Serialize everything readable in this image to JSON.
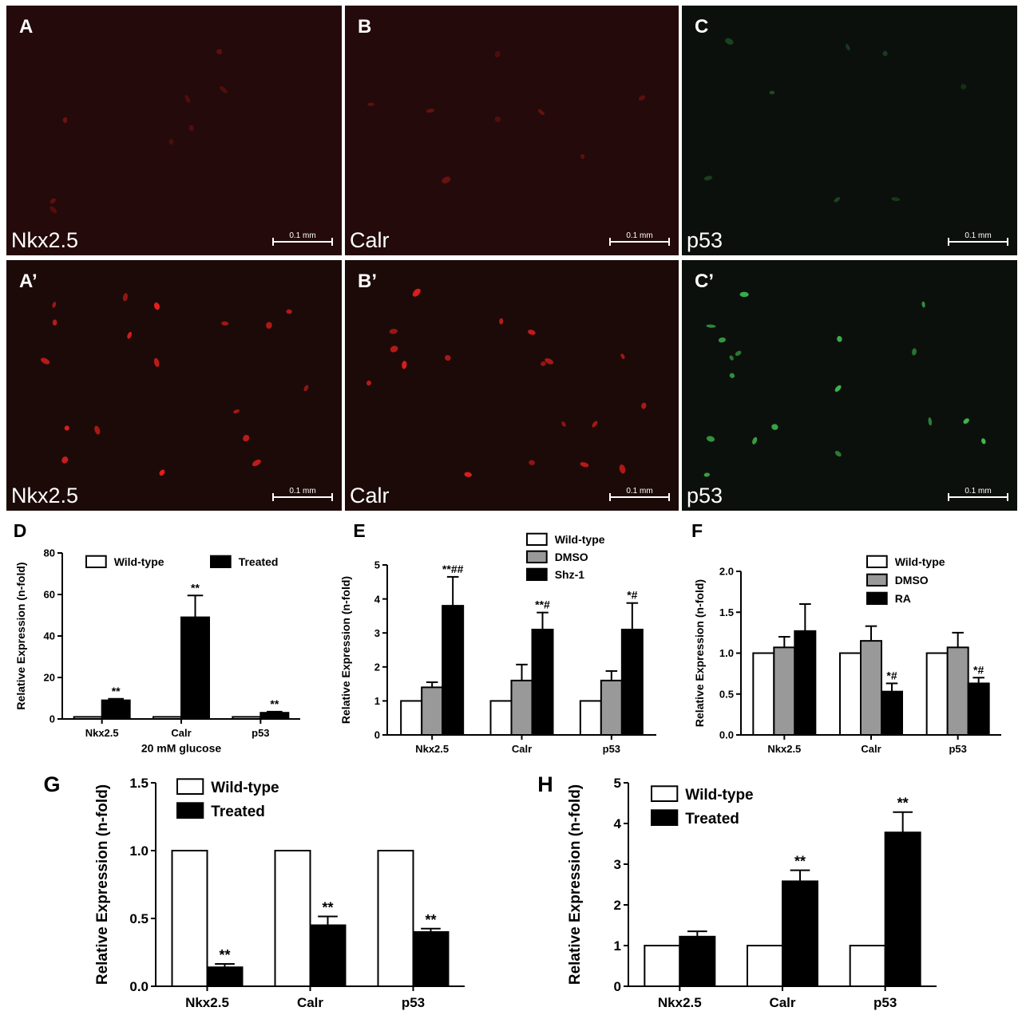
{
  "micrographs": [
    {
      "letter": "A",
      "label": "Nkx2.5",
      "scale": "0.1 mm",
      "channel": "red",
      "bright": false
    },
    {
      "letter": "B",
      "label": "Calr",
      "scale": "0.1 mm",
      "channel": "red",
      "bright": false
    },
    {
      "letter": "C",
      "label": "p53",
      "scale": "0.1 mm",
      "channel": "green",
      "bright": false
    },
    {
      "letter": "A’",
      "label": "Nkx2.5",
      "scale": "0.1 mm",
      "channel": "red",
      "bright": true
    },
    {
      "letter": "B’",
      "label": "Calr",
      "scale": "0.1 mm",
      "channel": "red",
      "bright": true
    },
    {
      "letter": "C’",
      "label": "p53",
      "scale": "0.1 mm",
      "channel": "green",
      "bright": true
    }
  ],
  "colors": {
    "white_bar": "#ffffff",
    "grey_bar": "#999999",
    "black_bar": "#000000",
    "red_cell": "#e8201c",
    "green_cell": "#3fbf4f"
  },
  "chart_data": [
    {
      "panel": "D",
      "type": "bar",
      "categories": [
        "Nkx2.5",
        "Calr",
        "p53"
      ],
      "xlabel": "20 mM glucose",
      "ylabel": "Relative Expression (n-fold)",
      "ylim": [
        0,
        80
      ],
      "yticks": [
        0,
        20,
        40,
        60,
        80
      ],
      "legend_position": "top",
      "series": [
        {
          "name": "Wild-type",
          "fill": "white",
          "values": [
            1,
            1,
            1
          ],
          "errors": [
            0,
            0,
            0
          ],
          "annotations": [
            "",
            "",
            ""
          ]
        },
        {
          "name": "Treated",
          "fill": "black",
          "values": [
            9,
            49,
            3
          ],
          "errors": [
            0.7,
            10.5,
            0.5
          ],
          "annotations": [
            "**",
            "**",
            "**"
          ]
        }
      ]
    },
    {
      "panel": "E",
      "type": "bar",
      "categories": [
        "Nkx2.5",
        "Calr",
        "p53"
      ],
      "xlabel": "",
      "ylabel": "Relative Expression (n-fold)",
      "ylim": [
        0,
        5
      ],
      "yticks": [
        0,
        1,
        2,
        3,
        4,
        5
      ],
      "legend_position": "top-right",
      "series": [
        {
          "name": "Wild-type",
          "fill": "white",
          "values": [
            1,
            1,
            1
          ],
          "errors": [
            0,
            0,
            0
          ],
          "annotations": [
            "",
            "",
            ""
          ]
        },
        {
          "name": "DMSO",
          "fill": "grey",
          "values": [
            1.4,
            1.6,
            1.6
          ],
          "errors": [
            0.15,
            0.47,
            0.28
          ],
          "annotations": [
            "",
            "",
            ""
          ]
        },
        {
          "name": "Shz-1",
          "fill": "black",
          "values": [
            3.8,
            3.1,
            3.1
          ],
          "errors": [
            0.85,
            0.5,
            0.78
          ],
          "annotations": [
            "**##",
            "**#",
            "*#"
          ]
        }
      ]
    },
    {
      "panel": "F",
      "type": "bar",
      "categories": [
        "Nkx2.5",
        "Calr",
        "p53"
      ],
      "xlabel": "",
      "ylabel": "Relative Expression (n-fold)",
      "ylim": [
        0,
        2.0
      ],
      "yticks": [
        "0.0",
        "0.5",
        "1.0",
        "1.5",
        "2.0"
      ],
      "legend_position": "top-right",
      "series": [
        {
          "name": "Wild-type",
          "fill": "white",
          "values": [
            1.0,
            1.0,
            1.0
          ],
          "errors": [
            0,
            0,
            0
          ],
          "annotations": [
            "",
            "",
            ""
          ]
        },
        {
          "name": "DMSO",
          "fill": "grey",
          "values": [
            1.07,
            1.15,
            1.07
          ],
          "errors": [
            0.13,
            0.18,
            0.18
          ],
          "annotations": [
            "",
            "",
            ""
          ]
        },
        {
          "name": "RA",
          "fill": "black",
          "values": [
            1.27,
            0.53,
            0.63
          ],
          "errors": [
            0.33,
            0.1,
            0.07
          ],
          "annotations": [
            "",
            "*#",
            "*#"
          ]
        }
      ]
    },
    {
      "panel": "G",
      "type": "bar",
      "categories": [
        "Nkx2.5",
        "Calr",
        "p53"
      ],
      "xlabel": "",
      "ylabel": "Relative Expression (n-fold)",
      "ylim": [
        0,
        1.5
      ],
      "yticks": [
        "0.0",
        "0.5",
        "1.0",
        "1.5"
      ],
      "legend_position": "top-left",
      "series": [
        {
          "name": "Wild-type",
          "fill": "white",
          "values": [
            1.0,
            1.0,
            1.0
          ],
          "errors": [
            0,
            0,
            0
          ],
          "annotations": [
            "",
            "",
            ""
          ]
        },
        {
          "name": "Treated",
          "fill": "black",
          "values": [
            0.14,
            0.45,
            0.4
          ],
          "errors": [
            0.025,
            0.065,
            0.025
          ],
          "annotations": [
            "**",
            "**",
            "**"
          ]
        }
      ]
    },
    {
      "panel": "H",
      "type": "bar",
      "categories": [
        "Nkx2.5",
        "Calr",
        "p53"
      ],
      "xlabel": "",
      "ylabel": "Relative Expression (n-fold)",
      "ylim": [
        0,
        5
      ],
      "yticks": [
        0,
        1,
        2,
        3,
        4,
        5
      ],
      "legend_position": "top-left",
      "series": [
        {
          "name": "Wild-type",
          "fill": "white",
          "values": [
            1,
            1,
            1
          ],
          "errors": [
            0,
            0,
            0
          ],
          "annotations": [
            "",
            "",
            ""
          ]
        },
        {
          "name": "Treated",
          "fill": "black",
          "values": [
            1.22,
            2.58,
            3.78
          ],
          "errors": [
            0.13,
            0.27,
            0.5
          ],
          "annotations": [
            "",
            "**",
            "**"
          ]
        }
      ]
    }
  ]
}
